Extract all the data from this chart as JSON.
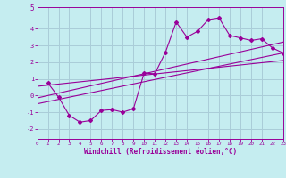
{
  "xlabel": "Windchill (Refroidissement éolien,°C)",
  "bg_color": "#c5edf0",
  "line_color": "#990099",
  "grid_color": "#aacdd8",
  "xlim": [
    0,
    23
  ],
  "ylim": [
    -2.6,
    5.3
  ],
  "xticks": [
    0,
    1,
    2,
    3,
    4,
    5,
    6,
    7,
    8,
    9,
    10,
    11,
    12,
    13,
    14,
    15,
    16,
    17,
    18,
    19,
    20,
    21,
    22,
    23
  ],
  "yticks": [
    -2,
    -1,
    0,
    1,
    2,
    3,
    4
  ],
  "top_label": "5",
  "data_x": [
    1,
    2,
    3,
    4,
    5,
    6,
    7,
    8,
    9,
    10,
    11,
    12,
    13,
    14,
    15,
    16,
    17,
    18,
    19,
    20,
    21,
    22,
    23
  ],
  "data_y": [
    0.75,
    -0.1,
    -1.2,
    -1.6,
    -1.5,
    -0.9,
    -0.85,
    -1.0,
    -0.8,
    1.35,
    1.3,
    2.6,
    4.4,
    3.5,
    3.85,
    4.55,
    4.65,
    3.6,
    3.45,
    3.3,
    3.4,
    2.85,
    2.55
  ],
  "line1_x": [
    0,
    23
  ],
  "line1_y": [
    -0.15,
    3.2
  ],
  "line2_x": [
    0,
    23
  ],
  "line2_y": [
    -0.5,
    2.55
  ],
  "line3_x": [
    0,
    23
  ],
  "line3_y": [
    0.55,
    2.1
  ]
}
